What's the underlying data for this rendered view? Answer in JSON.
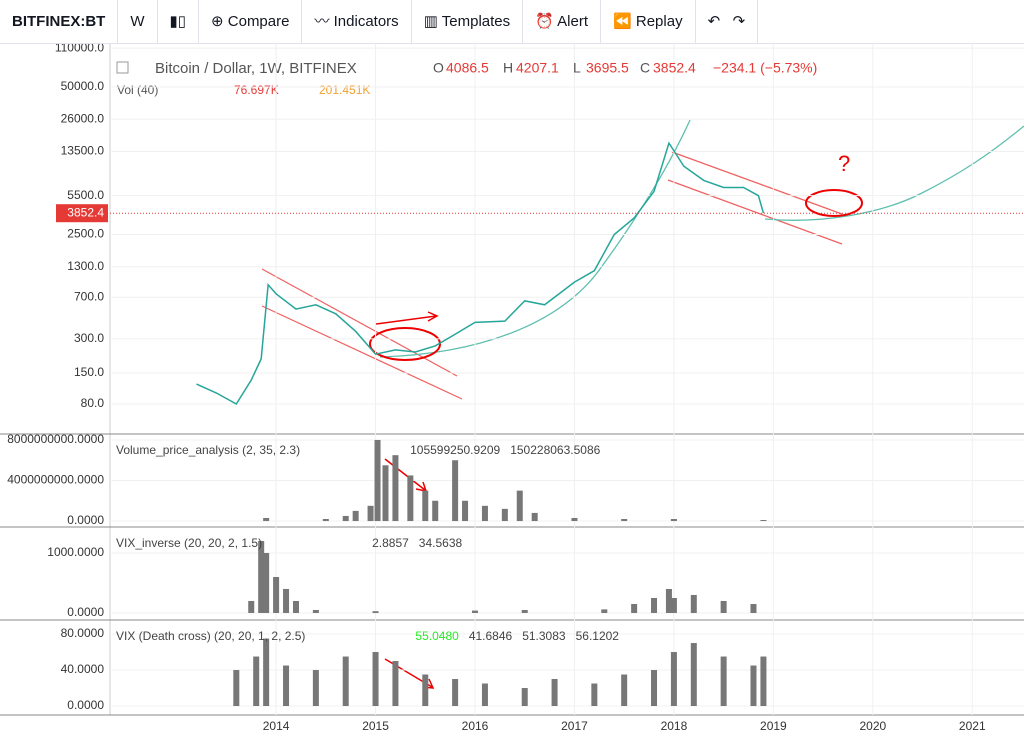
{
  "toolbar": {
    "symbol": "BITFINEX:BT",
    "interval": "W",
    "buttons": [
      "Compare",
      "Indicators",
      "Templates",
      "Alert",
      "Replay"
    ]
  },
  "time_axis": {
    "xlim": [
      2012.33,
      2021.52
    ],
    "xticks": [
      2014,
      2015,
      2016,
      2017,
      2018,
      2019,
      2020,
      2021
    ]
  },
  "price_pane": {
    "type": "line",
    "title": "Bitcoin / Dollar, 1W, BITFINEX",
    "ohlc": [
      {
        "label": "O",
        "value": 4086.5
      },
      {
        "label": "H",
        "value": 4207.1
      },
      {
        "label": "L",
        "value": 3695.5
      },
      {
        "label": "C",
        "value": 3852.4
      }
    ],
    "change": "−234.1 (−5.73%)",
    "volume_name": "Vol (40)",
    "volume_values": [
      "76.697K",
      "201.451K"
    ],
    "annotation": "?",
    "log_scale": true,
    "ylim": [
      43.5,
      119700
    ],
    "yticks": [
      {
        "value": 110000,
        "label": "110000.0"
      },
      {
        "value": 50000,
        "label": "50000.0"
      },
      {
        "value": 26000,
        "label": "26000.0"
      },
      {
        "value": 13500,
        "label": "13500.0"
      },
      {
        "value": 5500,
        "label": "5500.0"
      },
      {
        "value": 2500,
        "label": "2500.0"
      },
      {
        "value": 1300,
        "label": "1300.0"
      },
      {
        "value": 700,
        "label": "700.0"
      },
      {
        "value": 300,
        "label": "300.0"
      },
      {
        "value": 150,
        "label": "150.0"
      },
      {
        "value": 80,
        "label": "80.0"
      }
    ],
    "last_price": 3852.4,
    "color": "#26a69a",
    "x": [
      2013.2,
      2013.4,
      2013.6,
      2013.75,
      2013.85,
      2013.92,
      2014.0,
      2014.2,
      2014.4,
      2014.6,
      2014.8,
      2015.0,
      2015.2,
      2015.4,
      2015.6,
      2015.8,
      2016.0,
      2016.3,
      2016.5,
      2016.7,
      2017.0,
      2017.2,
      2017.4,
      2017.6,
      2017.8,
      2017.95,
      2018.1,
      2018.3,
      2018.5,
      2018.7,
      2018.85,
      2018.9
    ],
    "values": [
      120,
      100,
      80,
      130,
      200,
      900,
      750,
      550,
      600,
      500,
      350,
      220,
      240,
      230,
      260,
      330,
      420,
      430,
      650,
      600,
      950,
      1200,
      2500,
      3500,
      6000,
      16000,
      10000,
      7500,
      6500,
      6500,
      5500,
      3852.4
    ]
  },
  "panes": [
    {
      "type": "bar",
      "name": "Volume_price_analysis (2, 35, 2.3)",
      "legend_values": [
        "105599250.9209",
        "150228063.5086"
      ],
      "color": "#777777",
      "ylim": [
        -590000000,
        8590000000
      ],
      "yticks": [
        {
          "value": 8000000000,
          "label": "8000000000.0000"
        },
        {
          "value": 4000000000,
          "label": "4000000000.0000"
        },
        {
          "value": 0,
          "label": "0.0000"
        }
      ],
      "x": [
        2013.9,
        2014.5,
        2014.7,
        2014.8,
        2014.95,
        2015.02,
        2015.1,
        2015.2,
        2015.35,
        2015.5,
        2015.6,
        2015.8,
        2015.9,
        2016.1,
        2016.3,
        2016.45,
        2016.6,
        2017.0,
        2017.5,
        2018.0,
        2018.9
      ],
      "values": [
        300000000,
        200000000,
        500000000,
        1000000000,
        1500000000,
        8000000000,
        5500000000,
        6500000000,
        4500000000,
        3000000000,
        2000000000,
        6000000000,
        2000000000,
        1500000000,
        1200000000,
        3000000000,
        800000000,
        300000000,
        200000000,
        200000000,
        100000000
      ]
    },
    {
      "type": "bar",
      "name": "VIX_inverse (20, 20, 2, 1.5)",
      "legend_values": [
        "2.8857",
        "34.5638"
      ],
      "color": "#777777",
      "ylim": [
        -117,
        1433
      ],
      "yticks": [
        {
          "value": 1000,
          "label": "1000.0000"
        },
        {
          "value": 0,
          "label": "0.0000"
        }
      ],
      "x": [
        2013.6,
        2013.75,
        2013.85,
        2013.9,
        2014.0,
        2014.1,
        2014.2,
        2014.4,
        2015.0,
        2016.0,
        2016.5,
        2017.3,
        2017.6,
        2017.8,
        2017.95,
        2018.0,
        2018.2,
        2018.5,
        2018.8
      ],
      "values": [
        0,
        200,
        1200,
        1000,
        600,
        400,
        200,
        50,
        30,
        40,
        50,
        60,
        150,
        250,
        400,
        250,
        300,
        200,
        150
      ]
    },
    {
      "type": "bar",
      "name": "VIX (Death cross) (20, 20, 1, 2, 2.5)",
      "legend_values": [
        "55.0480",
        "41.6846",
        "51.3083",
        "56.1202"
      ],
      "color": "#777777",
      "ylim": [
        -10,
        95.6
      ],
      "yticks": [
        {
          "value": 80,
          "label": "80.0000"
        },
        {
          "value": 40,
          "label": "40.0000"
        },
        {
          "value": 0,
          "label": "0.0000"
        }
      ],
      "x": [
        2013.6,
        2013.8,
        2013.9,
        2014.1,
        2014.4,
        2014.7,
        2015.0,
        2015.2,
        2015.5,
        2015.8,
        2016.1,
        2016.5,
        2016.8,
        2017.2,
        2017.5,
        2017.8,
        2018.0,
        2018.2,
        2018.5,
        2018.8,
        2018.9
      ],
      "values": [
        40,
        55,
        75,
        45,
        40,
        55,
        60,
        50,
        35,
        30,
        25,
        20,
        30,
        25,
        35,
        40,
        60,
        70,
        55,
        45,
        55
      ]
    }
  ]
}
